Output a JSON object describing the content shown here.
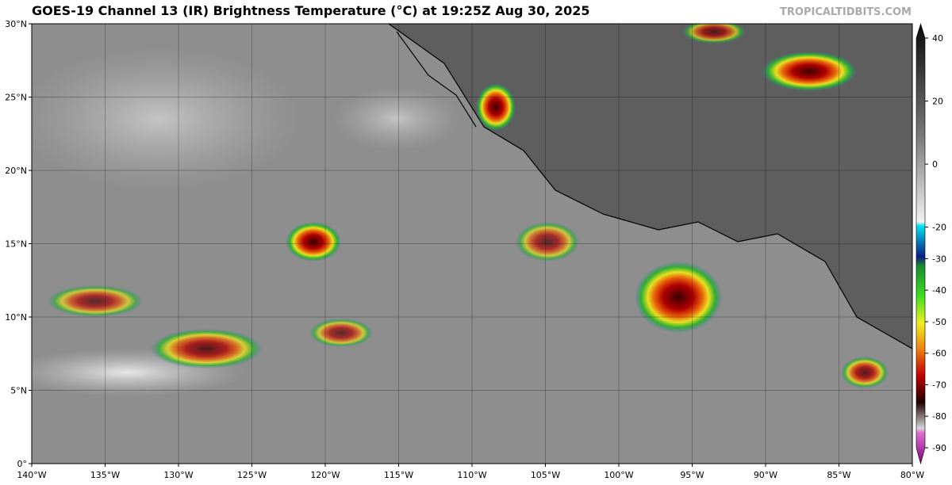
{
  "header": {
    "title": "GOES-19 Channel 13 (IR) Brightness Temperature (°C) at 19:25Z Aug 30, 2025",
    "credit": "TROPICALTIDBITS.COM"
  },
  "map": {
    "lat_labels": [
      "30°N",
      "25°N",
      "20°N",
      "15°N",
      "10°N",
      "5°N",
      "0°"
    ],
    "lon_labels": [
      "140°W",
      "135°W",
      "130°W",
      "125°W",
      "120°W",
      "115°W",
      "110°W",
      "105°W",
      "100°W",
      "95°W",
      "90°W",
      "85°W",
      "80°W"
    ]
  },
  "colorbar": {
    "lim": [
      -90,
      40
    ],
    "ticks": [
      40,
      20,
      0,
      -20,
      -30,
      -40,
      -50,
      -60,
      -70,
      -80,
      -90
    ]
  }
}
